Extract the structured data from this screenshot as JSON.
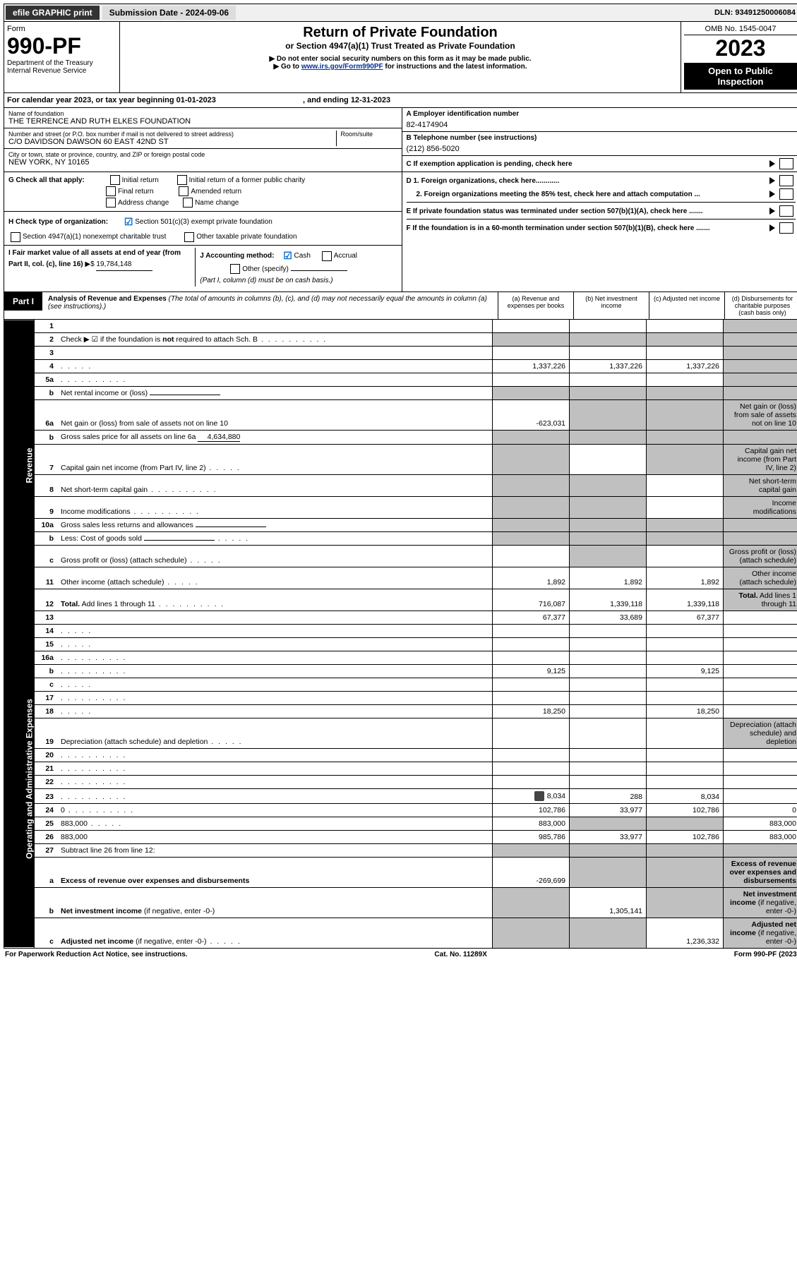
{
  "header": {
    "efile": "efile GRAPHIC print",
    "submission": "Submission Date - 2024-09-06",
    "dln": "DLN: 93491250006084"
  },
  "form_box": {
    "form_word": "Form",
    "form_no": "990-PF",
    "dept": "Department of the Treasury",
    "irs": "Internal Revenue Service",
    "title": "Return of Private Foundation",
    "subtitle": "or Section 4947(a)(1) Trust Treated as Private Foundation",
    "instr1": "▶ Do not enter social security numbers on this form as it may be made public.",
    "instr2_pre": "▶ Go to ",
    "instr2_link": "www.irs.gov/Form990PF",
    "instr2_post": " for instructions and the latest information.",
    "omb": "OMB No. 1545-0047",
    "year": "2023",
    "open": "Open to Public Inspection"
  },
  "cal": {
    "text": "For calendar year 2023, or tax year beginning 01-01-2023",
    "ending": ", and ending 12-31-2023"
  },
  "id": {
    "name_label": "Name of foundation",
    "name": "THE TERRENCE AND RUTH ELKES FOUNDATION",
    "addr_label": "Number and street (or P.O. box number if mail is not delivered to street address)",
    "addr": "C/O DAVIDSON DAWSON 60 EAST 42ND ST",
    "room_label": "Room/suite",
    "city_label": "City or town, state or province, country, and ZIP or foreign postal code",
    "city": "NEW YORK, NY  10165",
    "a_label": "A Employer identification number",
    "a_val": "82-4174904",
    "b_label": "B Telephone number (see instructions)",
    "b_val": "(212) 856-5020",
    "c_label": "C If exemption application is pending, check here"
  },
  "checks": {
    "g": "G Check all that apply:",
    "g_opts": [
      "Initial return",
      "Initial return of a former public charity",
      "Final return",
      "Amended return",
      "Address change",
      "Name change"
    ],
    "h": "H Check type of organization:",
    "h1": "Section 501(c)(3) exempt private foundation",
    "h2": "Section 4947(a)(1) nonexempt charitable trust",
    "h3": "Other taxable private foundation",
    "i": "I Fair market value of all assets at end of year (from Part II, col. (c), line 16)",
    "i_val": "19,784,148",
    "j": "J Accounting method:",
    "j_cash": "Cash",
    "j_accrual": "Accrual",
    "j_other": "Other (specify)",
    "j_note": "(Part I, column (d) must be on cash basis.)",
    "d1": "D 1. Foreign organizations, check here............",
    "d2": "2. Foreign organizations meeting the 85% test, check here and attach computation ...",
    "e": "E  If private foundation status was terminated under section 507(b)(1)(A), check here .......",
    "f": "F  If the foundation is in a 60-month termination under section 507(b)(1)(B), check here .......",
    "arrow_dollar": "▶$"
  },
  "part1": {
    "label": "Part I",
    "title": "Analysis of Revenue and Expenses",
    "note": " (The total of amounts in columns (b), (c), and (d) may not necessarily equal the amounts in column (a) (see instructions).)",
    "cols": {
      "a": "(a)   Revenue and expenses per books",
      "b": "(b)   Net investment income",
      "c": "(c)   Adjusted net income",
      "d": "(d)   Disbursements for charitable purposes (cash basis only)"
    }
  },
  "sidebars": {
    "rev": "Revenue",
    "exp": "Operating and Administrative Expenses"
  },
  "rows": [
    {
      "n": "1",
      "d": "",
      "a": "",
      "b": "",
      "c": "",
      "grey_d": true
    },
    {
      "n": "2",
      "d": "Check ▶ ☑ if the foundation is <b>not</b> required to attach Sch. B",
      "dots": true,
      "nocols": true,
      "grey_d": true
    },
    {
      "n": "3",
      "d": "",
      "a": "",
      "b": "",
      "c": "",
      "grey_d": true
    },
    {
      "n": "4",
      "d": "",
      "dots": "sm",
      "a": "1,337,226",
      "b": "1,337,226",
      "c": "1,337,226",
      "grey_d": true
    },
    {
      "n": "5a",
      "d": "",
      "dots": true,
      "a": "",
      "b": "",
      "c": "",
      "grey_d": true
    },
    {
      "n": "b",
      "d": "Net rental income or (loss)",
      "inline_box": true,
      "grey_abcd": true
    },
    {
      "n": "6a",
      "d": "Net gain or (loss) from sale of assets not on line 10",
      "a": "-623,031",
      "grey_bcd": true,
      "grey_d": true
    },
    {
      "n": "b",
      "d": "Gross sales price for all assets on line 6a",
      "inline_val": "4,634,880",
      "grey_abcd": true
    },
    {
      "n": "7",
      "d": "Capital gain net income (from Part IV, line 2)",
      "dots": "sm",
      "a": "",
      "b": "",
      "grey_a": true,
      "grey_cd": true
    },
    {
      "n": "8",
      "d": "Net short-term capital gain",
      "dots": true,
      "grey_ab": true,
      "c": "",
      "grey_d": true
    },
    {
      "n": "9",
      "d": "Income modifications",
      "dots": true,
      "grey_ab": true,
      "c": "",
      "grey_d": true
    },
    {
      "n": "10a",
      "d": "Gross sales less returns and allowances",
      "inline_box": true,
      "grey_abcd": true
    },
    {
      "n": "b",
      "d": "Less: Cost of goods sold",
      "dots": "sm",
      "inline_box": true,
      "grey_abcd": true
    },
    {
      "n": "c",
      "d": "Gross profit or (loss) (attach schedule)",
      "dots": "sm",
      "a": "",
      "grey_b": true,
      "c": "",
      "grey_d": true
    },
    {
      "n": "11",
      "d": "Other income (attach schedule)",
      "dots": "sm",
      "a": "1,892",
      "b": "1,892",
      "c": "1,892",
      "grey_d": true
    },
    {
      "n": "12",
      "d": "<b>Total.</b> Add lines 1 through 11",
      "dots": true,
      "a": "716,087",
      "b": "1,339,118",
      "c": "1,339,118",
      "grey_d": true,
      "section_end": "rev"
    }
  ],
  "rows_exp": [
    {
      "n": "13",
      "d": "",
      "a": "67,377",
      "b": "33,689",
      "c": "67,377"
    },
    {
      "n": "14",
      "d": "",
      "dots": "sm",
      "a": "",
      "b": "",
      "c": ""
    },
    {
      "n": "15",
      "d": "",
      "dots": "sm",
      "a": "",
      "b": "",
      "c": ""
    },
    {
      "n": "16a",
      "d": "",
      "dots": true,
      "a": "",
      "b": "",
      "c": ""
    },
    {
      "n": "b",
      "d": "",
      "dots": true,
      "a": "9,125",
      "b": "",
      "c": "9,125"
    },
    {
      "n": "c",
      "d": "",
      "dots": "sm",
      "a": "",
      "b": "",
      "c": ""
    },
    {
      "n": "17",
      "d": "",
      "dots": true,
      "a": "",
      "b": "",
      "c": ""
    },
    {
      "n": "18",
      "d": "",
      "dots": "sm",
      "a": "18,250",
      "b": "",
      "c": "18,250"
    },
    {
      "n": "19",
      "d": "Depreciation (attach schedule) and depletion",
      "dots": "sm",
      "a": "",
      "b": "",
      "c": "",
      "grey_d": true
    },
    {
      "n": "20",
      "d": "",
      "dots": true,
      "a": "",
      "b": "",
      "c": ""
    },
    {
      "n": "21",
      "d": "",
      "dots": true,
      "a": "",
      "b": "",
      "c": ""
    },
    {
      "n": "22",
      "d": "",
      "dots": true,
      "a": "",
      "b": "",
      "c": ""
    },
    {
      "n": "23",
      "d": "",
      "dots": true,
      "icon": true,
      "a": "8,034",
      "b": "288",
      "c": "8,034"
    },
    {
      "n": "24",
      "d": "0",
      "dots": true,
      "a": "102,786",
      "b": "33,977",
      "c": "102,786"
    },
    {
      "n": "25",
      "d": "883,000",
      "dots": "sm",
      "a": "883,000",
      "grey_bc": true
    },
    {
      "n": "26",
      "d": "883,000",
      "a": "985,786",
      "b": "33,977",
      "c": "102,786",
      "section_end": "exp"
    }
  ],
  "rows_final": [
    {
      "n": "27",
      "d": "Subtract line 26 from line 12:",
      "grey_all": true
    },
    {
      "n": "a",
      "d": "<b>Excess of revenue over expenses and disbursements</b>",
      "a": "-269,699",
      "grey_bcd": true
    },
    {
      "n": "b",
      "d": "<b>Net investment income</b> (if negative, enter -0-)",
      "grey_a": true,
      "b": "1,305,141",
      "grey_cd": true
    },
    {
      "n": "c",
      "d": "<b>Adjusted net income</b> (if negative, enter -0-)",
      "dots": "sm",
      "grey_ab": true,
      "c": "1,236,332",
      "grey_d": true
    }
  ],
  "footer": {
    "left": "For Paperwork Reduction Act Notice, see instructions.",
    "mid": "Cat. No. 11289X",
    "right": "Form 990-PF (2023)"
  }
}
